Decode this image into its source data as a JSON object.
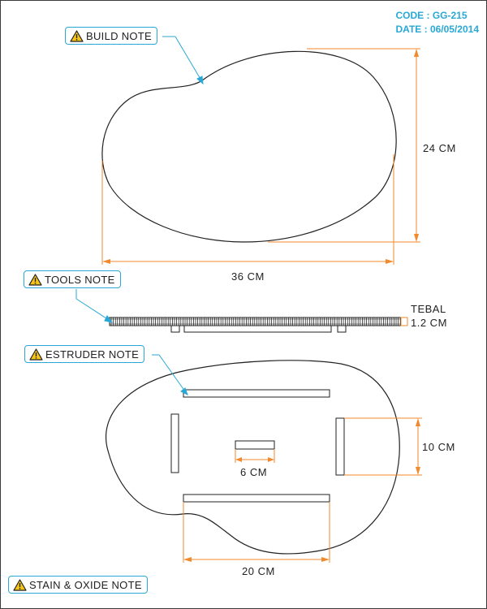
{
  "header": {
    "code_label": "CODE : GG-215",
    "date_label": "DATE : 06/05/2014"
  },
  "notes": {
    "build": "BUILD NOTE",
    "tools": "TOOLS NOTE",
    "estruder": "ESTRUDER NOTE",
    "stain": "STAIN & OXIDE NOTE"
  },
  "dimensions": {
    "height_top": "24 CM",
    "width_top": "36 CM",
    "thickness_line1": "TEBAL",
    "thickness_line2": "1.2 CM",
    "foot_height": "10 CM",
    "center_piece": "6 CM",
    "bottom_bar": "20 CM"
  },
  "colors": {
    "dimension_lines": "#f08a2c",
    "note_accent": "#29a8d6",
    "warning_fill": "#f5c518",
    "outline": "#222222"
  },
  "icons": {
    "note": "warning-triangle-icon"
  }
}
